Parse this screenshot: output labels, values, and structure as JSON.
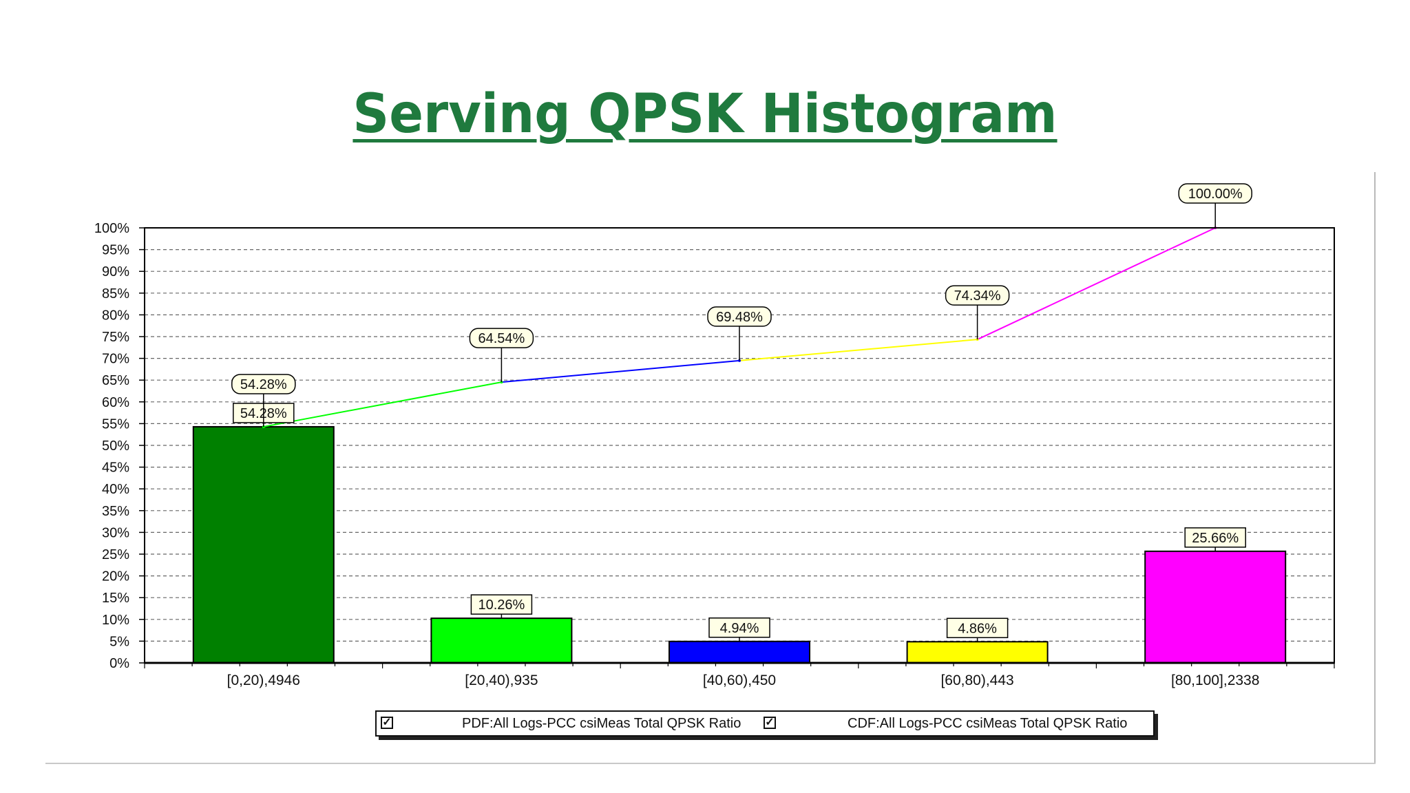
{
  "slide": {
    "title": "Serving QPSK Histogram"
  },
  "chart_data": {
    "type": "bar",
    "categories": [
      "[0,20),4946",
      "[20,40),935",
      "[40,60),450",
      "[60,80),443",
      "[80,100],2338"
    ],
    "series": [
      {
        "name": "PDF:All Logs-PCC csiMeas Total QPSK Ratio",
        "kind": "bar",
        "values": [
          54.28,
          10.26,
          4.94,
          4.86,
          25.66
        ],
        "labels": [
          "54.28%",
          "10.26%",
          "4.94%",
          "4.86%",
          "25.66%"
        ],
        "colors": [
          "#008000",
          "#00ff00",
          "#0000ff",
          "#ffff00",
          "#ff00ff"
        ]
      },
      {
        "name": "CDF:All Logs-PCC csiMeas Total QPSK Ratio",
        "kind": "line",
        "values": [
          54.28,
          64.54,
          69.48,
          74.34,
          100.0
        ],
        "labels": [
          "54.28%",
          "64.54%",
          "69.48%",
          "74.34%",
          "100.00%"
        ],
        "segment_colors": [
          "#00ff00",
          "#0000ff",
          "#ffff00",
          "#ff00ff"
        ]
      }
    ],
    "ylim": [
      0,
      100
    ],
    "ytick_labels": [
      "0%",
      "5%",
      "10%",
      "15%",
      "20%",
      "25%",
      "30%",
      "35%",
      "40%",
      "45%",
      "50%",
      "55%",
      "60%",
      "65%",
      "70%",
      "75%",
      "80%",
      "85%",
      "90%",
      "95%",
      "100%"
    ],
    "grid": true,
    "legend": {
      "position": "bottom",
      "checked": true,
      "check_glyph": "✓"
    }
  }
}
